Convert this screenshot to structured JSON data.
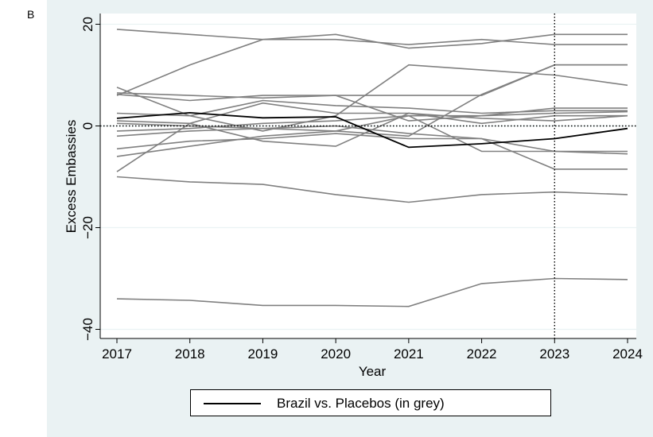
{
  "panel_label": "B",
  "colors": {
    "figure_background": "#eaf2f3",
    "plot_background": "#ffffff",
    "highlight_line": "#000000",
    "placebo_line": "#808080",
    "gridline": "#eaf2f3"
  },
  "legend": {
    "label": "Brazil vs. Placebos (in grey)"
  },
  "chart_data": {
    "type": "line",
    "xlabel": "Year",
    "ylabel": "Excess Embassies",
    "x": [
      2017,
      2018,
      2019,
      2020,
      2021,
      2022,
      2023,
      2024
    ],
    "xlim": [
      2017,
      2024
    ],
    "ylim": [
      -42,
      22
    ],
    "yticks": [
      20,
      0,
      -20,
      -40
    ],
    "ytick_labels": [
      "20",
      "0",
      "−20",
      "−40"
    ],
    "xticks": [
      "2017",
      "2018",
      "2019",
      "2020",
      "2021",
      "2022",
      "2023",
      "2024"
    ],
    "grid": "horizontal",
    "reference_lines": {
      "horizontal_y": 0,
      "vertical_x": 2023,
      "style": "dotted"
    },
    "legend_position": "bottom",
    "highlight_series": {
      "name": "Brazil",
      "values": [
        1.5,
        2.6,
        1.6,
        1.8,
        -4.2,
        -3.5,
        -2.5,
        -0.5
      ]
    },
    "placebo_series": [
      [
        19.0,
        18.0,
        17.0,
        17.0,
        16.0,
        17.0,
        16.0,
        16.0
      ],
      [
        6.0,
        12.0,
        17.0,
        18.0,
        15.3,
        16.2,
        18.0,
        18.0
      ],
      [
        7.6,
        2.0,
        -1.0,
        2.0,
        12.0,
        11.0,
        10.0,
        8.0
      ],
      [
        6.5,
        6.0,
        5.5,
        6.0,
        6.0,
        6.0,
        12.0,
        12.0
      ],
      [
        6.2,
        5.0,
        6.0,
        6.0,
        1.0,
        2.0,
        3.5,
        3.5
      ],
      [
        2.5,
        2.0,
        5.0,
        4.0,
        3.5,
        2.5,
        3.0,
        3.0
      ],
      [
        1.0,
        0.5,
        4.5,
        2.5,
        2.5,
        1.5,
        1.0,
        2.0
      ],
      [
        -1.0,
        -0.5,
        0.5,
        1.0,
        2.0,
        2.0,
        2.5,
        2.8
      ],
      [
        0.5,
        0.0,
        -0.5,
        0.0,
        -1.5,
        -2.5,
        -5.0,
        -5.0
      ],
      [
        -2.0,
        -1.0,
        -0.5,
        -1.0,
        -2.0,
        6.2,
        12.0,
        12.0
      ],
      [
        -4.5,
        -3.0,
        -2.5,
        -1.5,
        -2.5,
        -2.5,
        -8.5,
        -8.5
      ],
      [
        -6.0,
        -4.0,
        -2.0,
        -1.0,
        2.0,
        -5.0,
        -5.0,
        -5.5
      ],
      [
        -9.0,
        0.5,
        -3.0,
        -4.0,
        2.5,
        0.5,
        2.0,
        2.0
      ],
      [
        -10.0,
        -11.0,
        -11.5,
        -13.5,
        -15.0,
        -13.5,
        -13.0,
        -13.5
      ],
      [
        -34.0,
        -34.3,
        -35.3,
        -35.3,
        -35.5,
        -31.0,
        -30.0,
        -30.2
      ]
    ]
  }
}
